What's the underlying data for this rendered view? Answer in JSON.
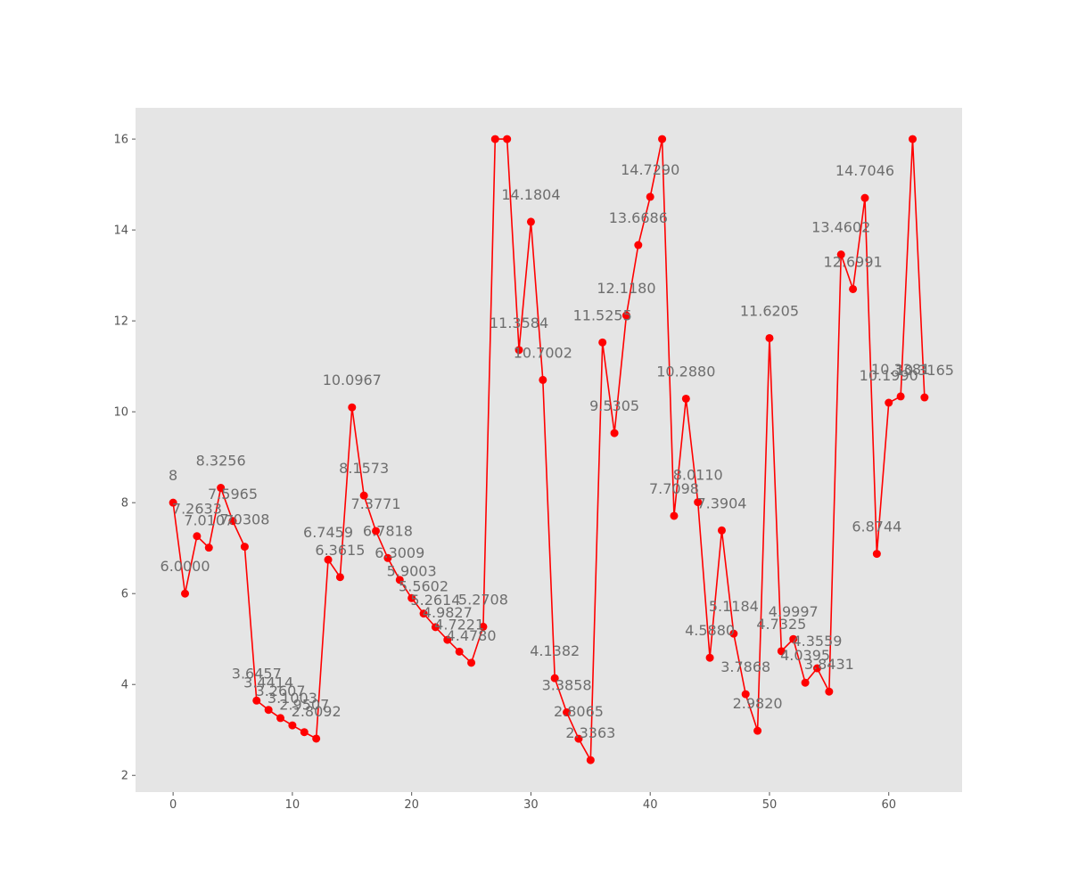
{
  "chart_data": {
    "type": "line",
    "title": "",
    "xlabel": "",
    "ylabel": "",
    "xlim": [
      -3.15,
      66.15
    ],
    "ylim": [
      1.632,
      16.688
    ],
    "xticks": [
      0,
      10,
      20,
      30,
      40,
      50,
      60
    ],
    "yticks": [
      2,
      4,
      6,
      8,
      10,
      12,
      14,
      16
    ],
    "grid": false,
    "legend": "none",
    "colors": {
      "series": "#ff0000",
      "plot_background": "#e5e5e5",
      "label_text": "#6e6e6e"
    },
    "series": [
      {
        "x": [
          0,
          1,
          2,
          3,
          4,
          5,
          6,
          7,
          8,
          9,
          10,
          11,
          12,
          13,
          14,
          15,
          16,
          17,
          18,
          19,
          20,
          21,
          22,
          23,
          24,
          25,
          26,
          27,
          28,
          29,
          30,
          31,
          32,
          33,
          34,
          35,
          36,
          37,
          38,
          39,
          40,
          41,
          42,
          43,
          44,
          45,
          46,
          47,
          48,
          49,
          50,
          51,
          52,
          53,
          54,
          55,
          56,
          57,
          58,
          59,
          60,
          61,
          62,
          63
        ],
        "values": [
          8,
          6.0,
          7.2633,
          7.0107,
          8.3256,
          7.5965,
          7.0308,
          3.6457,
          3.4414,
          3.2607,
          3.1003,
          2.9507,
          2.8092,
          6.7459,
          6.3615,
          10.0967,
          8.1573,
          7.3771,
          6.7818,
          6.3009,
          5.9003,
          5.5602,
          5.2614,
          4.9827,
          4.7221,
          4.478,
          5.2708,
          16,
          16,
          11.3584,
          14.1804,
          10.7002,
          4.1382,
          3.3858,
          2.8065,
          2.3363,
          11.5255,
          9.5305,
          12.118,
          13.6686,
          14.729,
          16,
          7.7098,
          10.288,
          8.011,
          4.588,
          7.3904,
          5.1184,
          3.7868,
          2.982,
          11.6205,
          4.7325,
          4.9997,
          4.0395,
          4.3559,
          3.8431,
          13.4602,
          12.6991,
          14.7046,
          6.8744,
          10.199,
          10.3381,
          16,
          10.3165
        ],
        "labels": [
          "8",
          "6.0000",
          "7.2633",
          "7.0107",
          "8.3256",
          "7.5965",
          "7.0308",
          "3.6457",
          "3.4414",
          "3.2607",
          "3.1003",
          "2.9507",
          "2.8092",
          "6.7459",
          "6.3615",
          "10.0967",
          "8.1573",
          "7.3771",
          "6.7818",
          "6.3009",
          "5.9003",
          "5.5602",
          "5.2614",
          "4.9827",
          "4.7221",
          "4.4780",
          "5.2708",
          "",
          "",
          "11.3584",
          "14.1804",
          "10.7002",
          "4.1382",
          "3.3858",
          "2.8065",
          "2.3363",
          "11.5255",
          "9.5305",
          "12.1180",
          "13.6686",
          "14.7290",
          "",
          "7.7098",
          "10.2880",
          "8.0110",
          "4.5880",
          "7.3904",
          "5.1184",
          "3.7868",
          "2.9820",
          "11.6205",
          "4.7325",
          "4.9997",
          "4.0395",
          "4.3559",
          "3.8431",
          "13.4602",
          "12.6991",
          "14.7046",
          "6.8744",
          "10.1990",
          "10.3381",
          "",
          "10.3165"
        ]
      }
    ]
  }
}
